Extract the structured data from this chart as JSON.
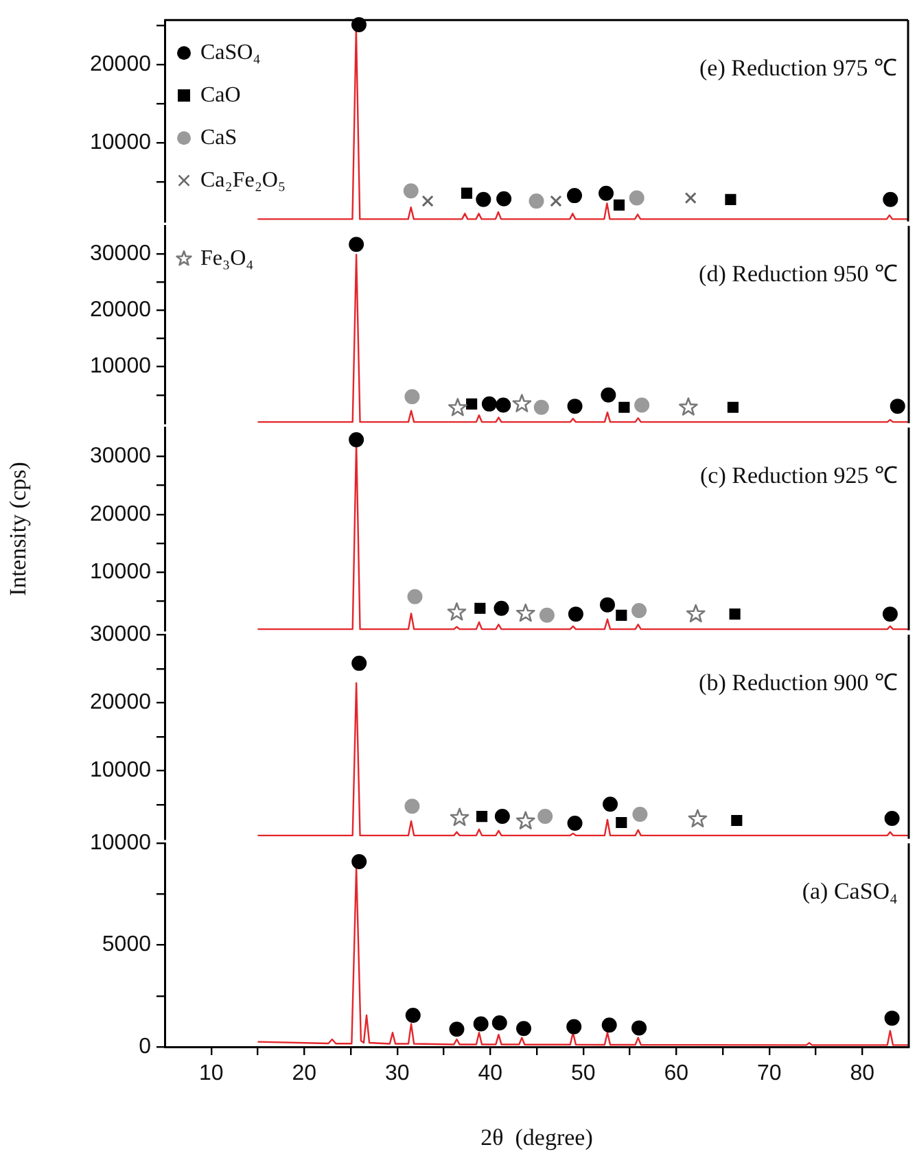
{
  "chart_data": [
    {
      "type": "line",
      "annotations": [
        "(e) Reduction 975 ℃"
      ],
      "xlim": [
        5,
        85
      ],
      "ylim": [
        0,
        25700
      ],
      "yticks": [
        {
          "value": 5000,
          "label": null
        },
        10000,
        {
          "value": 15000,
          "label": null
        },
        20000,
        {
          "value": 25000,
          "label": null
        }
      ],
      "tick_labels": "y",
      "legend": "top left",
      "series": [
        {
          "type": "line",
          "color": "#e3262b",
          "marker": "none",
          "x": [
            15,
            25.2,
            25.6,
            26.0,
            31.2,
            31.5,
            31.8,
            37.0,
            37.3,
            37.6,
            38.5,
            38.8,
            39.1,
            40.6,
            40.9,
            41.2,
            48.6,
            48.9,
            49.2,
            52.3,
            52.6,
            52.9,
            55.6,
            55.9,
            56.2,
            82.7,
            83.0,
            83.3,
            85
          ],
          "values": [
            300,
            300,
            24600,
            300,
            300,
            1800,
            300,
            300,
            1000,
            300,
            300,
            1000,
            300,
            300,
            1200,
            300,
            300,
            1000,
            300,
            300,
            2300,
            300,
            300,
            900,
            300,
            300,
            800,
            300,
            300
          ]
        },
        {
          "type": "scatter",
          "name": "CaSO₄",
          "color": "#000000",
          "marker": "circle",
          "x": [
            25.9,
            39.3,
            41.5,
            49.1,
            52.5,
            83.1
          ],
          "values": [
            25100,
            2800,
            2900,
            3300,
            3600,
            2800
          ]
        },
        {
          "type": "scatter",
          "name": "CaO",
          "color": "#000000",
          "marker": "square",
          "x": [
            37.5,
            53.9,
            65.9
          ],
          "values": [
            3600,
            2100,
            2800
          ]
        },
        {
          "type": "scatter",
          "name": "CaS",
          "color": "#9a9a9a",
          "marker": "circle",
          "x": [
            31.5,
            45.0,
            55.8
          ],
          "values": [
            3900,
            2600,
            3000
          ]
        },
        {
          "type": "scatter",
          "name": "Ca₂Fe₂O₅",
          "color": "#666666",
          "marker": "cross",
          "x": [
            33.3,
            47.1,
            61.6
          ],
          "values": [
            2600,
            2600,
            3000
          ]
        }
      ]
    },
    {
      "type": "line",
      "annotations": [
        "(d) Reduction 950 ℃"
      ],
      "xlim": [
        5,
        85
      ],
      "ylim": [
        0,
        35000
      ],
      "yticks": [
        {
          "value": 5000,
          "label": null
        },
        10000,
        {
          "value": 15000,
          "label": null
        },
        20000,
        {
          "value": 25000,
          "label": null
        },
        30000
      ],
      "tick_labels": "y",
      "legend": "top left",
      "series": [
        {
          "type": "line",
          "color": "#e3262b",
          "marker": "none",
          "x": [
            15,
            25.2,
            25.6,
            26.0,
            31.2,
            31.5,
            31.8,
            38.5,
            38.8,
            39.1,
            40.6,
            40.9,
            41.2,
            48.6,
            48.9,
            49.2,
            52.3,
            52.6,
            52.9,
            55.6,
            55.9,
            56.2,
            82.7,
            83.0,
            83.3,
            85
          ],
          "values": [
            200,
            200,
            29900,
            200,
            200,
            2200,
            200,
            200,
            1400,
            200,
            200,
            1000,
            200,
            200,
            800,
            200,
            200,
            1900,
            200,
            200,
            900,
            200,
            200,
            600,
            200,
            200
          ]
        },
        {
          "type": "scatter",
          "name": "CaSO₄",
          "color": "#000000",
          "marker": "circle",
          "x": [
            25.6,
            39.9,
            41.4,
            49.1,
            52.7,
            83.8
          ],
          "values": [
            31700,
            3400,
            3200,
            3000,
            5000,
            3000
          ]
        },
        {
          "type": "scatter",
          "name": "CaO",
          "color": "#000000",
          "marker": "square",
          "x": [
            38.0,
            54.4,
            66.1
          ],
          "values": [
            3400,
            2800,
            2800
          ]
        },
        {
          "type": "scatter",
          "name": "CaS",
          "color": "#9a9a9a",
          "marker": "circle",
          "x": [
            31.6,
            45.5,
            56.3
          ],
          "values": [
            4700,
            2800,
            3200
          ]
        },
        {
          "type": "scatter",
          "name": "Fe₃O₄",
          "color": "#777777",
          "marker": "star",
          "x": [
            36.5,
            43.4,
            61.3
          ],
          "values": [
            2700,
            3400,
            2800
          ]
        }
      ]
    },
    {
      "type": "line",
      "annotations": [
        "(c) Reduction 925 ℃"
      ],
      "ylabel": "Intensity (cps)",
      "xlim": [
        5,
        85
      ],
      "ylim": [
        0,
        35000
      ],
      "yticks": [
        {
          "value": 5000,
          "label": null
        },
        10000,
        {
          "value": 15000,
          "label": null
        },
        20000,
        {
          "value": 25000,
          "label": null
        },
        30000
      ],
      "tick_labels": "y",
      "series": [
        {
          "type": "line",
          "color": "#e3262b",
          "marker": "none",
          "x": [
            15,
            25.2,
            25.6,
            26.0,
            31.2,
            31.5,
            31.8,
            36.1,
            36.4,
            36.7,
            38.5,
            38.8,
            39.1,
            40.6,
            40.9,
            41.2,
            48.6,
            48.9,
            49.2,
            52.3,
            52.6,
            52.9,
            55.6,
            55.9,
            56.2,
            82.7,
            83.0,
            83.3,
            85
          ],
          "values": [
            200,
            200,
            32400,
            200,
            200,
            2900,
            200,
            200,
            600,
            200,
            200,
            1400,
            200,
            200,
            1000,
            200,
            200,
            700,
            200,
            200,
            1900,
            200,
            200,
            1000,
            200,
            200,
            700,
            200,
            200
          ]
        },
        {
          "type": "scatter",
          "name": "CaSO₄",
          "color": "#000000",
          "marker": "circle",
          "x": [
            25.6,
            41.2,
            49.2,
            52.6,
            83.0
          ],
          "values": [
            32900,
            3800,
            2800,
            4400,
            2800
          ]
        },
        {
          "type": "scatter",
          "name": "CaO",
          "color": "#000000",
          "marker": "square",
          "x": [
            38.9,
            54.1,
            66.3
          ],
          "values": [
            3800,
            2600,
            2800
          ]
        },
        {
          "type": "scatter",
          "name": "CaS",
          "color": "#9a9a9a",
          "marker": "circle",
          "x": [
            31.9,
            46.1,
            56.0
          ],
          "values": [
            5800,
            2600,
            3400
          ]
        },
        {
          "type": "scatter",
          "name": "Fe₃O₄",
          "color": "#777777",
          "marker": "star",
          "x": [
            36.4,
            43.8,
            62.1
          ],
          "values": [
            3100,
            2900,
            2800
          ]
        }
      ]
    },
    {
      "type": "line",
      "annotations": [
        "(b) Reduction 900 ℃"
      ],
      "xlim": [
        5,
        85
      ],
      "ylim": [
        0,
        30000
      ],
      "yticks": [
        {
          "value": 5000,
          "label": null
        },
        10000,
        {
          "value": 15000,
          "label": null
        },
        20000,
        {
          "value": 25000,
          "label": null
        },
        30000
      ],
      "tick_labels": "y",
      "series": [
        {
          "type": "line",
          "color": "#e3262b",
          "marker": "none",
          "x": [
            15,
            25.2,
            25.6,
            26.0,
            31.2,
            31.5,
            31.8,
            36.1,
            36.4,
            36.7,
            38.5,
            38.8,
            39.1,
            40.6,
            40.9,
            41.2,
            48.6,
            48.9,
            49.2,
            52.3,
            52.6,
            52.9,
            55.6,
            55.9,
            56.2,
            82.7,
            83.0,
            83.3,
            85
          ],
          "values": [
            500,
            500,
            22900,
            500,
            500,
            2600,
            500,
            500,
            1000,
            500,
            500,
            1400,
            500,
            500,
            1200,
            500,
            500,
            800,
            500,
            500,
            2800,
            500,
            500,
            1300,
            500,
            500,
            1000,
            500,
            500
          ]
        },
        {
          "type": "scatter",
          "name": "CaSO₄",
          "color": "#000000",
          "marker": "circle",
          "x": [
            25.9,
            41.3,
            49.1,
            52.9,
            83.2
          ],
          "values": [
            25800,
            3300,
            2300,
            5100,
            3000
          ]
        },
        {
          "type": "scatter",
          "name": "CaO",
          "color": "#000000",
          "marker": "square",
          "x": [
            39.1,
            54.1,
            66.5
          ],
          "values": [
            3300,
            2400,
            2700
          ]
        },
        {
          "type": "scatter",
          "name": "CaS",
          "color": "#9a9a9a",
          "marker": "circle",
          "x": [
            31.6,
            45.9,
            56.1
          ],
          "values": [
            4800,
            3300,
            3600
          ]
        },
        {
          "type": "scatter",
          "name": "Fe₃O₄",
          "color": "#777777",
          "marker": "star",
          "x": [
            36.7,
            43.8,
            62.3
          ],
          "values": [
            3100,
            2600,
            2900
          ]
        }
      ]
    },
    {
      "type": "line",
      "annotations": [
        "(a) CaSO₄"
      ],
      "xlabel": "2θ  (degree)",
      "xlim": [
        5,
        85
      ],
      "xticks": [
        10,
        {
          "value": 15,
          "label": null
        },
        20,
        {
          "value": 25,
          "label": null
        },
        30,
        {
          "value": 35,
          "label": null
        },
        40,
        {
          "value": 45,
          "label": null
        },
        50,
        {
          "value": 55,
          "label": null
        },
        60,
        {
          "value": 65,
          "label": null
        },
        70,
        {
          "value": 75,
          "label": null
        },
        80
      ],
      "ylim": [
        0,
        10000
      ],
      "yticks": [
        0,
        {
          "value": 2500,
          "label": null
        },
        5000,
        {
          "value": 7500,
          "label": null
        },
        10000
      ],
      "series": [
        {
          "type": "line",
          "color": "#e3262b",
          "marker": "none",
          "x": [
            15,
            22.6,
            23,
            23.4,
            25.1,
            25.6,
            26.1,
            26.4,
            26.7,
            27.0,
            29.2,
            29.5,
            29.8,
            31.2,
            31.5,
            31.8,
            36.1,
            36.4,
            36.7,
            38.5,
            38.8,
            39.1,
            40.6,
            40.9,
            41.2,
            43.1,
            43.4,
            43.7,
            48.6,
            48.9,
            49.2,
            52.3,
            52.6,
            52.9,
            55.6,
            55.9,
            56.2,
            74.0,
            74.3,
            74.6,
            82.7,
            83.0,
            83.3,
            85
          ],
          "values": [
            250,
            170,
            370,
            160,
            160,
            8800,
            300,
            200,
            1550,
            200,
            150,
            700,
            150,
            150,
            1130,
            150,
            120,
            370,
            120,
            120,
            700,
            120,
            120,
            600,
            120,
            120,
            450,
            110,
            110,
            700,
            110,
            100,
            700,
            100,
            100,
            450,
            100,
            90,
            200,
            90,
            90,
            790,
            90,
            90
          ]
        },
        {
          "type": "scatter",
          "name": "CaSO₄",
          "color": "#000000",
          "marker": "circle",
          "x": [
            25.9,
            31.7,
            36.4,
            39.0,
            41.0,
            43.6,
            49.0,
            52.8,
            56.0,
            83.2
          ],
          "values": [
            9100,
            1550,
            870,
            1130,
            1180,
            900,
            990,
            1070,
            930,
            1410
          ]
        }
      ]
    }
  ]
}
